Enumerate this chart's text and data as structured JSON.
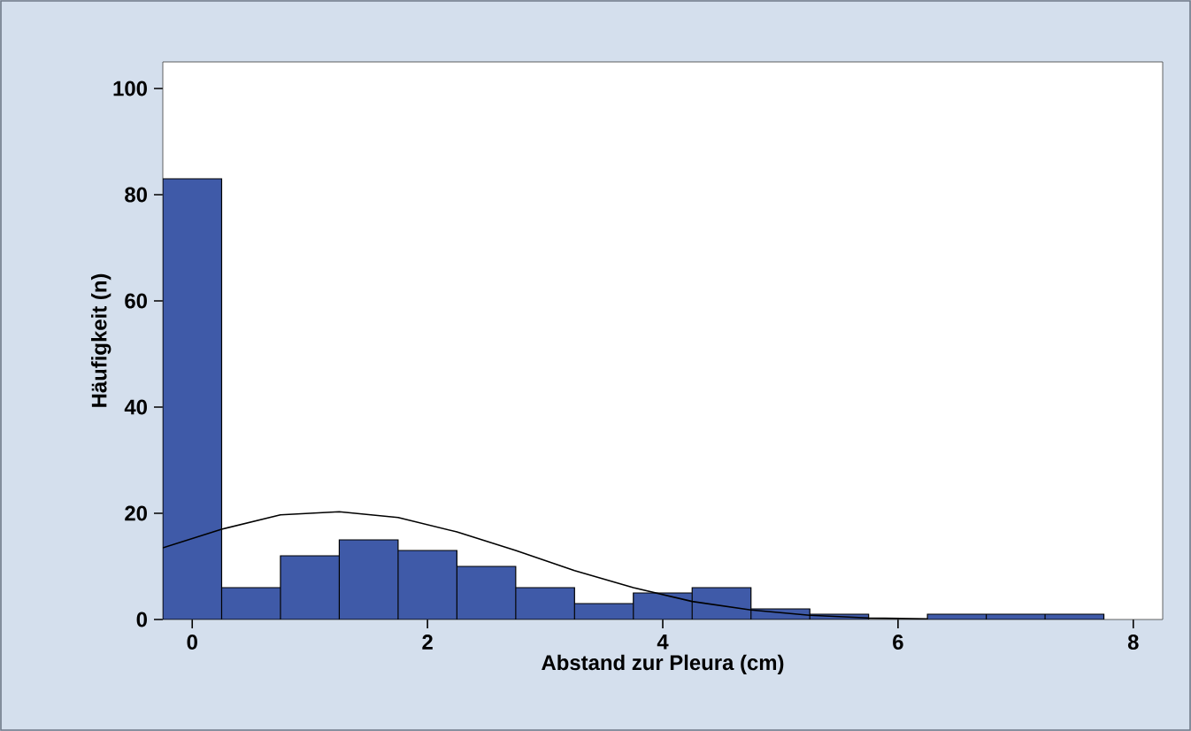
{
  "chart_data": {
    "type": "histogram",
    "xlabel": "Abstand zur Pleura (cm)",
    "ylabel": "Häufigkeit (n)",
    "bins": [
      -0.25,
      0.25,
      0.75,
      1.25,
      1.75,
      2.25,
      2.75,
      3.25,
      3.75,
      4.25,
      4.75,
      5.25,
      5.75,
      6.25,
      6.75,
      7.25,
      7.75
    ],
    "values": [
      83,
      6,
      12,
      15,
      13,
      10,
      6,
      3,
      5,
      6,
      2,
      1,
      0,
      1,
      1,
      1
    ],
    "color": "#3f5aa8",
    "series": [
      {
        "type": "line",
        "color": "#000000",
        "x": [
          -0.25,
          0.25,
          0.75,
          1.25,
          1.75,
          2.25,
          2.75,
          3.25,
          3.75,
          4.25,
          4.75,
          5.25,
          5.75,
          6.25
        ],
        "values": [
          13.5,
          17,
          19.7,
          20.3,
          19.2,
          16.5,
          13,
          9.2,
          6,
          3.4,
          1.8,
          0.8,
          0.3,
          0.1
        ]
      }
    ],
    "xlim": [
      -0.25,
      8.25
    ],
    "xticks": [
      0,
      2,
      4,
      6,
      8
    ],
    "ylim": [
      0,
      105
    ],
    "yticks": [
      0,
      20,
      40,
      60,
      80,
      100
    ]
  }
}
